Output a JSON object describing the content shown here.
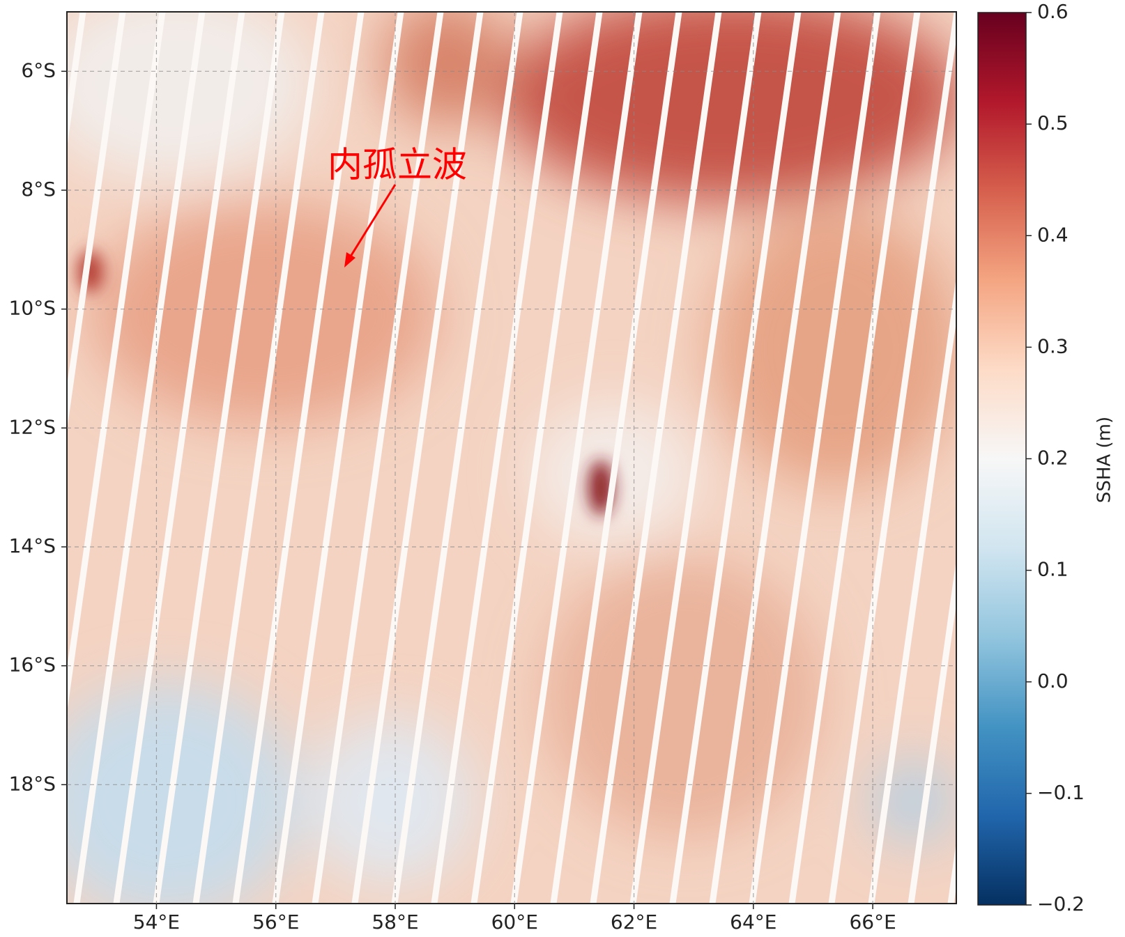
{
  "chart_data": {
    "type": "map",
    "annotation": "内孤立波",
    "xlim": [
      52.5,
      67.4
    ],
    "ylim": [
      -20,
      -5
    ],
    "xticks": [
      {
        "value": 54,
        "label": "54°E"
      },
      {
        "value": 56,
        "label": "56°E"
      },
      {
        "value": 58,
        "label": "58°E"
      },
      {
        "value": 60,
        "label": "60°E"
      },
      {
        "value": 62,
        "label": "62°E"
      },
      {
        "value": 64,
        "label": "64°E"
      },
      {
        "value": 66,
        "label": "66°E"
      }
    ],
    "yticks": [
      {
        "value": -6,
        "label": "6°S"
      },
      {
        "value": -8,
        "label": "8°S"
      },
      {
        "value": -10,
        "label": "10°S"
      },
      {
        "value": -12,
        "label": "12°S"
      },
      {
        "value": -14,
        "label": "14°S"
      },
      {
        "value": -16,
        "label": "16°S"
      },
      {
        "value": -18,
        "label": "18°S"
      }
    ],
    "grid": true,
    "colorbar": {
      "label": "SSHA (m)",
      "lim": [
        -0.2,
        0.6
      ],
      "ticks": [
        {
          "value": -0.2,
          "label": "−0.2"
        },
        {
          "value": -0.1,
          "label": "−0.1"
        },
        {
          "value": 0,
          "label": "0.0"
        },
        0.1,
        0.2,
        0.3,
        0.4,
        0.5,
        0.6
      ]
    }
  }
}
